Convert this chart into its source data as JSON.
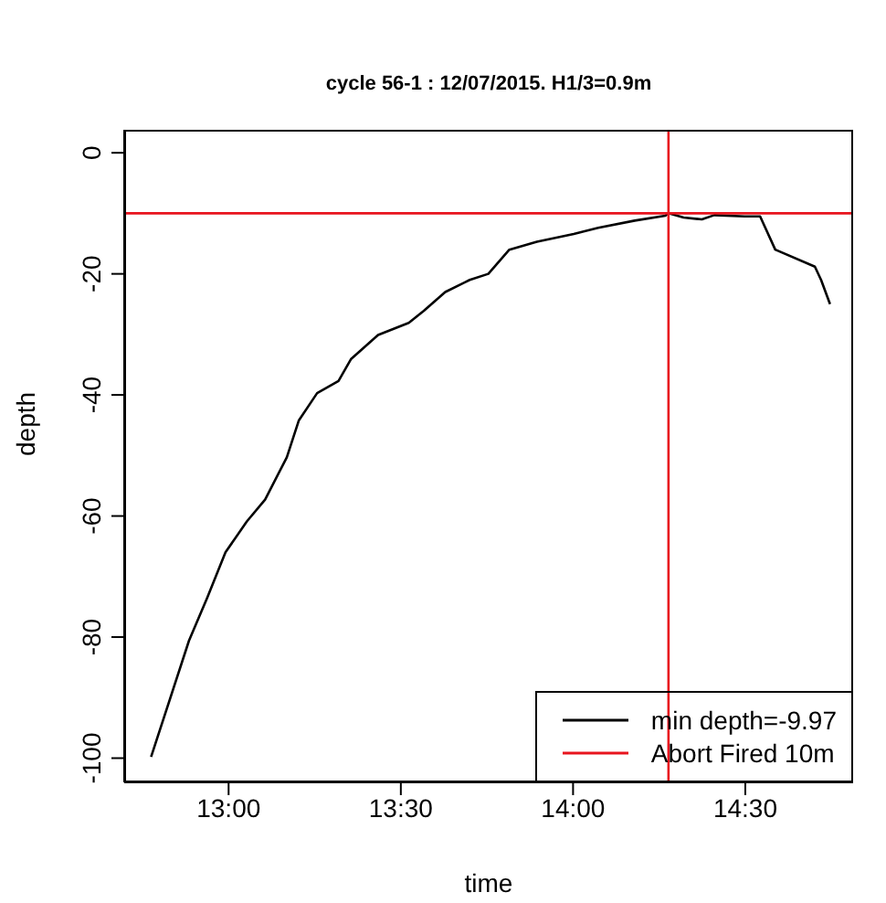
{
  "chart_data": {
    "type": "line",
    "title": "cycle 56-1 : 12/07/2015. H1/3=0.9m",
    "xlabel": "time",
    "ylabel": "depth",
    "xlim": [
      12.697,
      14.813
    ],
    "ylim": [
      -104,
      3.8
    ],
    "xticks": [
      {
        "value": 13,
        "label": "13:00"
      },
      {
        "value": 13.5,
        "label": "13:30"
      },
      {
        "value": 14,
        "label": "14:00"
      },
      {
        "value": 14.5,
        "label": "14:30"
      }
    ],
    "yticks": [
      0,
      -20,
      -40,
      -60,
      -80,
      -100
    ],
    "grid": false,
    "legend": "bottom right",
    "marker": "none",
    "line_style": "solid",
    "series": [
      {
        "name": "min depth=-9.97",
        "color": "#000000",
        "x": [
          12.775,
          12.885,
          12.938,
          12.991,
          13.053,
          13.106,
          13.169,
          13.204,
          13.257,
          13.319,
          13.355,
          13.434,
          13.523,
          13.567,
          13.629,
          13.7,
          13.754,
          13.815,
          13.895,
          14.002,
          14.073,
          14.179,
          14.268,
          14.277,
          14.321,
          14.374,
          14.41,
          14.498,
          14.543,
          14.587,
          14.702,
          14.72,
          14.746
        ],
        "values": [
          -99.8,
          -80.6,
          -73.5,
          -66,
          -60.9,
          -57.3,
          -50.3,
          -44.2,
          -39.7,
          -37.7,
          -34.1,
          -30.1,
          -28.1,
          -26.1,
          -23,
          -21,
          -20,
          -16,
          -14.7,
          -13.4,
          -12.4,
          -11.2,
          -10.4,
          -9.97,
          -10.7,
          -11,
          -10.3,
          -10.5,
          -10.5,
          -16,
          -18.8,
          -21,
          -25
        ]
      }
    ],
    "ref_lines": [
      {
        "axis": "y",
        "value": -10,
        "color": "#e8141e",
        "line_style": "solid"
      },
      {
        "axis": "x",
        "value": 14.277,
        "label": "Abort Fired 10m",
        "color": "#e8141e",
        "line_style": "solid"
      }
    ]
  }
}
